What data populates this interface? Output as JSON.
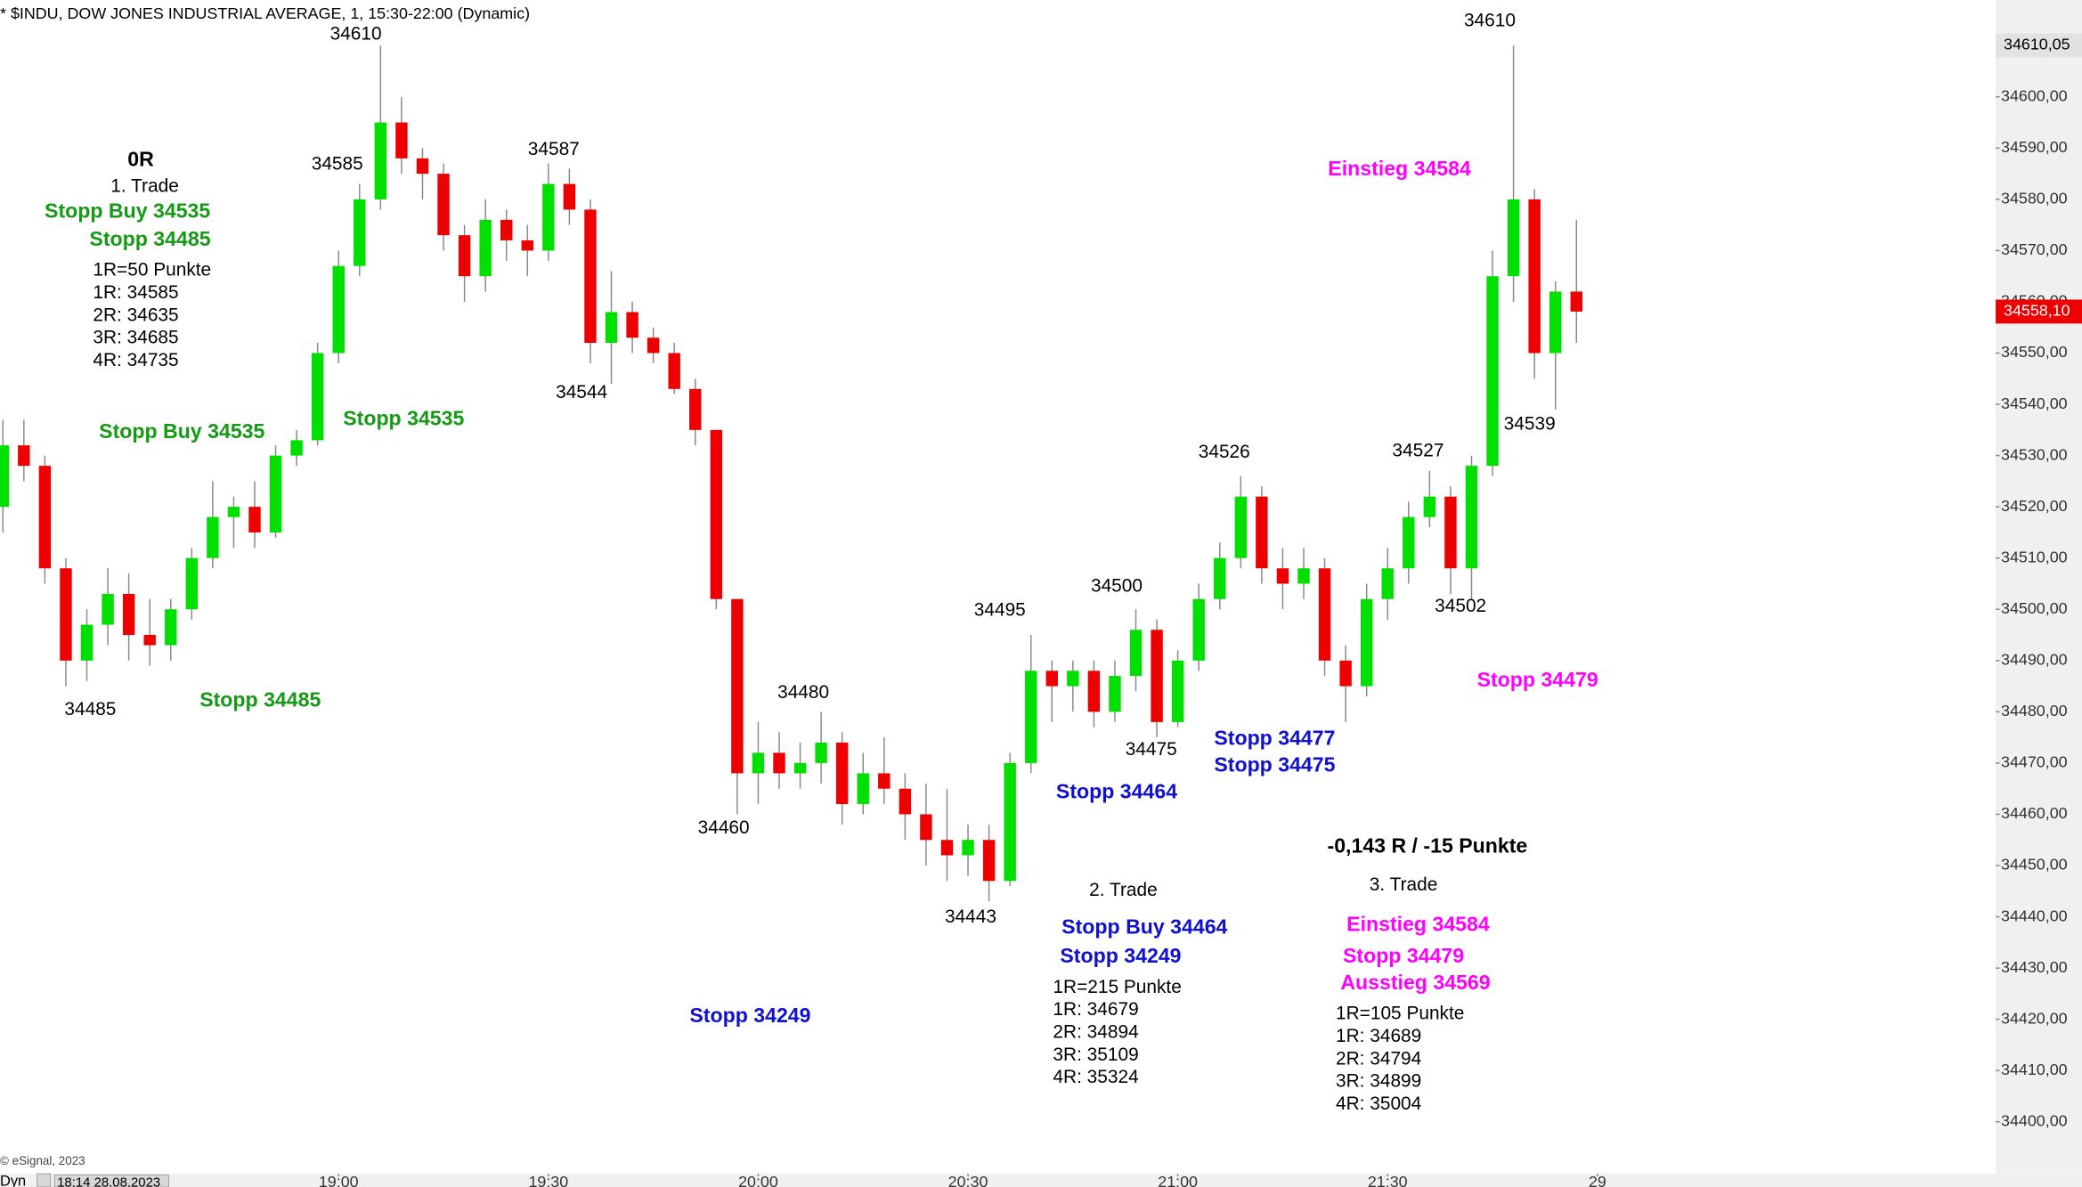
{
  "chart_data": {
    "type": "candlestick",
    "title": "* $INDU, DOW JONES INDUSTRIAL AVERAGE, 1, 15:30-22:00 (Dynamic)",
    "x": [
      "18:12",
      "18:15",
      "18:18",
      "18:21",
      "18:24",
      "18:27",
      "18:30",
      "18:33",
      "18:36",
      "18:39",
      "18:42",
      "18:45",
      "18:48",
      "18:51",
      "18:54",
      "18:57",
      "19:00",
      "19:03",
      "19:06",
      "19:09",
      "19:12",
      "19:15",
      "19:18",
      "19:21",
      "19:24",
      "19:27",
      "19:30",
      "19:33",
      "19:36",
      "19:39",
      "19:42",
      "19:45",
      "19:48",
      "19:51",
      "19:54",
      "19:57",
      "20:00",
      "20:03",
      "20:06",
      "20:09",
      "20:12",
      "20:15",
      "20:18",
      "20:21",
      "20:24",
      "20:27",
      "20:30",
      "20:33",
      "20:36",
      "20:39",
      "20:42",
      "20:45",
      "20:48",
      "20:51",
      "20:54",
      "20:57",
      "21:00",
      "21:03",
      "21:06",
      "21:09",
      "21:12",
      "21:15",
      "21:18",
      "21:21",
      "21:24",
      "21:27",
      "21:30",
      "21:33",
      "21:36",
      "21:39",
      "21:42",
      "21:45",
      "21:48",
      "21:51",
      "21:54",
      "21:57"
    ],
    "open": [
      34520,
      34532,
      34528,
      34508,
      34490,
      34497,
      34503,
      34495,
      34493,
      34500,
      34510,
      34518,
      34520,
      34515,
      34530,
      34533,
      34550,
      34567,
      34580,
      34595,
      34588,
      34585,
      34573,
      34565,
      34576,
      34572,
      34570,
      34583,
      34578,
      34552,
      34558,
      34553,
      34550,
      34543,
      34535,
      34502,
      34468,
      34472,
      34468,
      34470,
      34474,
      34462,
      34468,
      34465,
      34460,
      34455,
      34452,
      34455,
      34447,
      34470,
      34488,
      34485,
      34488,
      34480,
      34487,
      34496,
      34478,
      34490,
      34502,
      34510,
      34522,
      34508,
      34505,
      34508,
      34490,
      34485,
      34502,
      34508,
      34518,
      34522,
      34508,
      34528,
      34565,
      34580,
      34550,
      34562
    ],
    "high": [
      34537,
      34537,
      34530,
      34510,
      34500,
      34508,
      34507,
      34502,
      34502,
      34512,
      34525,
      34522,
      34525,
      34532,
      34535,
      34552,
      34570,
      34583,
      34610,
      34600,
      34590,
      34587,
      34575,
      34580,
      34578,
      34575,
      34587,
      34586,
      34580,
      34566,
      34560,
      34555,
      34552,
      34545,
      34535,
      34502,
      34478,
      34476,
      34474,
      34480,
      34476,
      34472,
      34475,
      34468,
      34466,
      34465,
      34458,
      34458,
      34472,
      34495,
      34490,
      34490,
      34490,
      34490,
      34500,
      34498,
      34492,
      34505,
      34513,
      34526,
      34524,
      34512,
      34512,
      34510,
      34493,
      34505,
      34512,
      34521,
      34527,
      34524,
      34530,
      34570,
      34610,
      34582,
      34564,
      34576
    ],
    "low": [
      34515,
      34525,
      34505,
      34485,
      34486,
      34493,
      34490,
      34489,
      34490,
      34498,
      34508,
      34512,
      34512,
      34514,
      34528,
      34532,
      34548,
      34565,
      34578,
      34585,
      34580,
      34570,
      34560,
      34562,
      34568,
      34565,
      34568,
      34575,
      34548,
      34544,
      34550,
      34548,
      34542,
      34532,
      34500,
      34460,
      34462,
      34465,
      34465,
      34466,
      34458,
      34460,
      34462,
      34455,
      34450,
      34447,
      34448,
      34443,
      34446,
      34468,
      34478,
      34480,
      34477,
      34478,
      34484,
      34475,
      34477,
      34488,
      34500,
      34508,
      34505,
      34500,
      34502,
      34487,
      34478,
      34483,
      34498,
      34505,
      34516,
      34503,
      34502,
      34526,
      34560,
      34545,
      34539,
      34552
    ],
    "close": [
      34532,
      34528,
      34508,
      34490,
      34497,
      34503,
      34495,
      34493,
      34500,
      34510,
      34518,
      34520,
      34515,
      34530,
      34533,
      34550,
      34567,
      34580,
      34595,
      34588,
      34585,
      34573,
      34565,
      34576,
      34572,
      34570,
      34583,
      34578,
      34552,
      34558,
      34553,
      34550,
      34543,
      34535,
      34502,
      34468,
      34472,
      34468,
      34470,
      34474,
      34462,
      34468,
      34465,
      34460,
      34455,
      34452,
      34455,
      34447,
      34470,
      34488,
      34485,
      34488,
      34480,
      34487,
      34496,
      34478,
      34490,
      34502,
      34510,
      34522,
      34508,
      34505,
      34508,
      34490,
      34485,
      34502,
      34508,
      34518,
      34522,
      34508,
      34528,
      34565,
      34580,
      34550,
      34562,
      34558.1
    ],
    "up_color": "#00e000",
    "down_color": "#ee0000",
    "wick_color": "#8a8a8a",
    "ylim": [
      34390.9,
      34618.9
    ],
    "yticks": [
      {
        "value": 34400,
        "label": "34400,00"
      },
      {
        "value": 34410,
        "label": "34410,00"
      },
      {
        "value": 34420,
        "label": "34420,00"
      },
      {
        "value": 34430,
        "label": "34430,00"
      },
      {
        "value": 34440,
        "label": "34440,00"
      },
      {
        "value": 34450,
        "label": "34450,00"
      },
      {
        "value": 34460,
        "label": "34460,00"
      },
      {
        "value": 34470,
        "label": "34470,00"
      },
      {
        "value": 34480,
        "label": "34480,00"
      },
      {
        "value": 34490,
        "label": "34490,00"
      },
      {
        "value": 34500,
        "label": "34500,00"
      },
      {
        "value": 34510,
        "label": "34510,00"
      },
      {
        "value": 34520,
        "label": "34520,00"
      },
      {
        "value": 34530,
        "label": "34530,00"
      },
      {
        "value": 34540,
        "label": "34540,00"
      },
      {
        "value": 34550,
        "label": "34550,00"
      },
      {
        "value": 34560,
        "label": "34560,00"
      },
      {
        "value": 34570,
        "label": "34570,00"
      },
      {
        "value": 34580,
        "label": "34580,00"
      },
      {
        "value": 34590,
        "label": "34590,00"
      },
      {
        "value": 34600,
        "label": "34600,00"
      }
    ],
    "price_markers": [
      {
        "value": 34610.05,
        "label": "34610,05",
        "color": "#e2e2e2",
        "text_color": "#000000"
      },
      {
        "value": 34558.1,
        "label": "34558,10",
        "color": "#ee0000",
        "text_color": "#ffffff"
      }
    ],
    "xticks": [
      {
        "value": "19:00",
        "label": "19:00"
      },
      {
        "value": "19:30",
        "label": "19:30"
      },
      {
        "value": "20:00",
        "label": "20:00"
      },
      {
        "value": "20:30",
        "label": "20:30"
      },
      {
        "value": "21:00",
        "label": "21:00"
      },
      {
        "value": "21:30",
        "label": "21:30"
      },
      {
        "value": "22:00",
        "label": "29"
      }
    ],
    "annotations": [
      {
        "text": "34610",
        "color": "#000000"
      },
      {
        "text": "34585",
        "color": "#000000"
      },
      {
        "text": "34587",
        "color": "#000000"
      },
      {
        "text": "34544",
        "color": "#000000"
      },
      {
        "text": "34485",
        "color": "#000000"
      },
      {
        "text": "34460",
        "color": "#000000"
      },
      {
        "text": "34480",
        "color": "#000000"
      },
      {
        "text": "34443",
        "color": "#000000"
      },
      {
        "text": "34495",
        "color": "#000000"
      },
      {
        "text": "34500",
        "color": "#000000"
      },
      {
        "text": "34475",
        "color": "#000000"
      },
      {
        "text": "34526",
        "color": "#000000"
      },
      {
        "text": "34527",
        "color": "#000000"
      },
      {
        "text": "34502",
        "color": "#000000"
      },
      {
        "text": "34539",
        "color": "#000000"
      },
      {
        "text": "34610",
        "color": "#000000"
      },
      {
        "text": "0R",
        "color": "#000000",
        "weight": "bold"
      },
      {
        "text": "1. Trade",
        "color": "#000000"
      },
      {
        "text": "Stopp Buy 34535",
        "color": "#149a14",
        "weight": "bold"
      },
      {
        "text": "Stopp 34485",
        "color": "#149a14",
        "weight": "bold"
      },
      {
        "text": "1R=50 Punkte",
        "color": "#000000"
      },
      {
        "text": "1R: 34585",
        "color": "#000000"
      },
      {
        "text": "2R: 34635",
        "color": "#000000"
      },
      {
        "text": "3R: 34685",
        "color": "#000000"
      },
      {
        "text": "4R: 34735",
        "color": "#000000"
      },
      {
        "text": "Stopp Buy 34535",
        "color": "#149a14",
        "weight": "bold"
      },
      {
        "text": "Stopp 34535",
        "color": "#149a14",
        "weight": "bold"
      },
      {
        "text": "Stopp 34485",
        "color": "#149a14",
        "weight": "bold"
      },
      {
        "text": "Stopp 34249",
        "color": "#1010d0",
        "weight": "bold"
      },
      {
        "text": "Stopp 34464",
        "color": "#1010d0",
        "weight": "bold"
      },
      {
        "text": "Stopp 34477",
        "color": "#1010d0",
        "weight": "bold"
      },
      {
        "text": "Stopp 34475",
        "color": "#1010d0",
        "weight": "bold"
      },
      {
        "text": "2. Trade",
        "color": "#000000"
      },
      {
        "text": "Stopp Buy 34464",
        "color": "#1010d0",
        "weight": "bold"
      },
      {
        "text": "Stopp 34249",
        "color": "#1010d0",
        "weight": "bold"
      },
      {
        "text": "1R=215 Punkte",
        "color": "#000000"
      },
      {
        "text": "1R: 34679",
        "color": "#000000"
      },
      {
        "text": "2R: 34894",
        "color": "#000000"
      },
      {
        "text": "3R: 35109",
        "color": "#000000"
      },
      {
        "text": "4R: 35324",
        "color": "#000000"
      },
      {
        "text": "-0,143 R / -15 Punkte",
        "color": "#000000",
        "weight": "bold"
      },
      {
        "text": "3. Trade",
        "color": "#000000"
      },
      {
        "text": "Einstieg 34584",
        "color": "#ff00ff",
        "weight": "bold"
      },
      {
        "text": "Stopp 34479",
        "color": "#ff00ff",
        "weight": "bold"
      },
      {
        "text": "Einstieg 34584",
        "color": "#ff00ff",
        "weight": "bold"
      },
      {
        "text": "Stopp 34479",
        "color": "#ff00ff",
        "weight": "bold"
      },
      {
        "text": "Ausstieg 34569",
        "color": "#ff00ff",
        "weight": "bold"
      },
      {
        "text": "1R=105 Punkte",
        "color": "#000000"
      },
      {
        "text": "1R: 34689",
        "color": "#000000"
      },
      {
        "text": "2R: 34794",
        "color": "#000000"
      },
      {
        "text": "3R: 34899",
        "color": "#000000"
      },
      {
        "text": "4R: 35004",
        "color": "#000000"
      }
    ]
  },
  "footer": {
    "copyright": "© eSignal, 2023",
    "mode": "Dyn",
    "timestamp": "18:14 28.08.2023"
  }
}
